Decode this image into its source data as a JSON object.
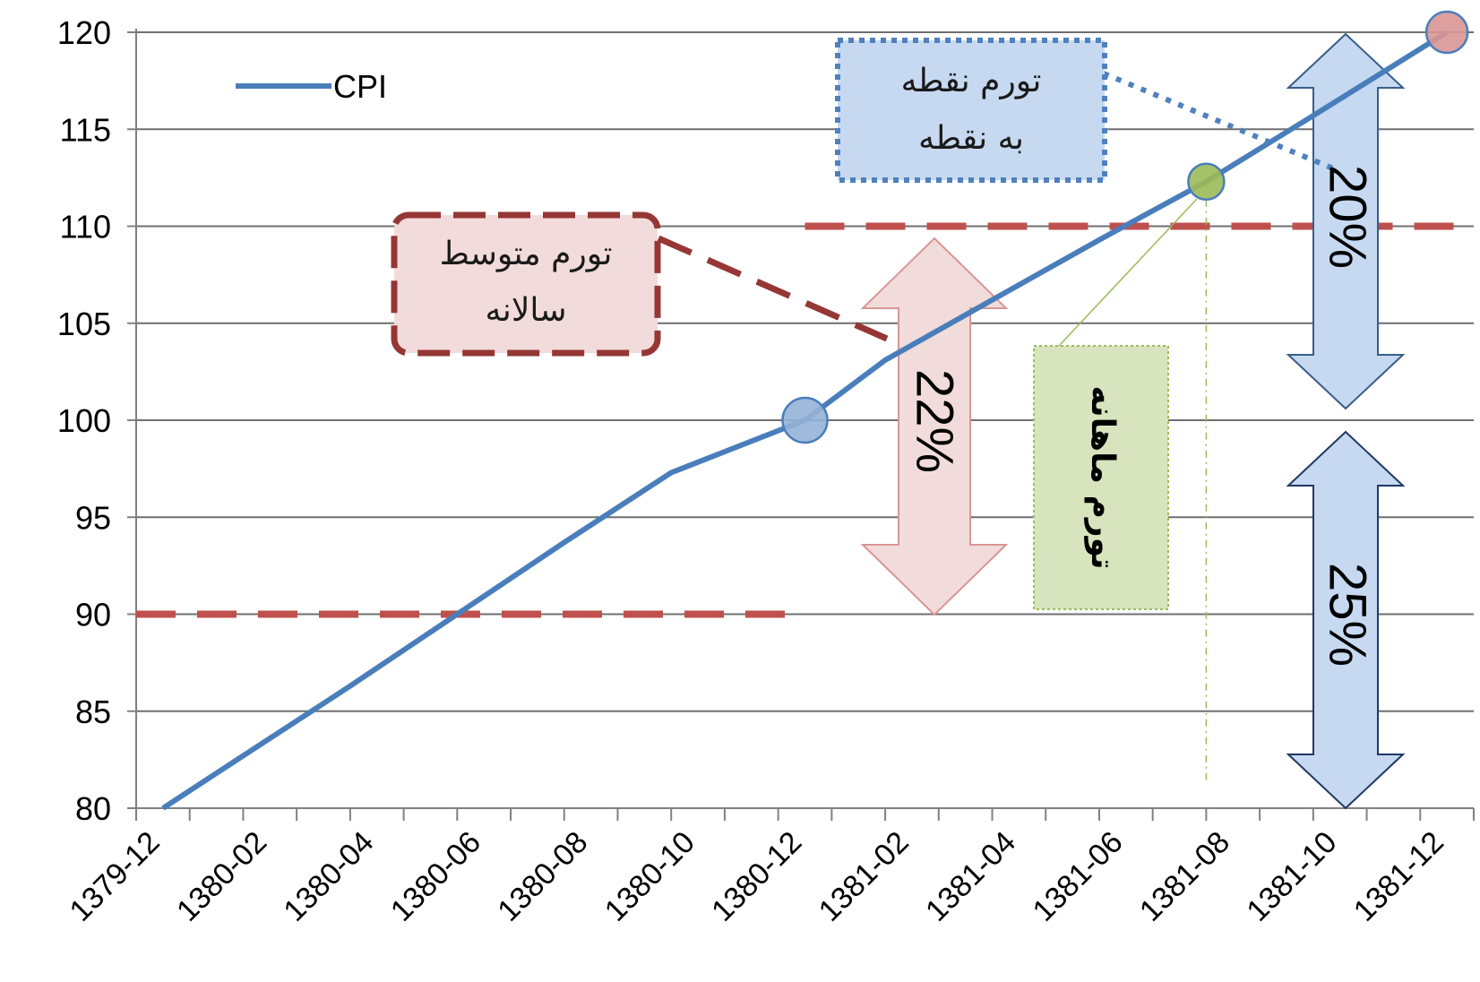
{
  "chart_data": {
    "type": "line",
    "x_tick_labels": [
      "1379-12",
      "1380-02",
      "1380-04",
      "1380-06",
      "1380-08",
      "1380-10",
      "1380-12",
      "1381-02",
      "1381-04",
      "1381-06",
      "1381-08",
      "1381-10",
      "1381-12"
    ],
    "yticks": [
      80,
      85,
      90,
      95,
      100,
      105,
      110,
      115,
      120
    ],
    "ylim": [
      80,
      120
    ],
    "grid": true,
    "legend_position": "top-left",
    "series": [
      {
        "name": "CPI",
        "color": "#4a7ebb",
        "x": [
          0.5,
          2,
          4,
          6,
          8,
          10,
          12.5,
          14,
          16,
          18,
          20,
          22,
          24.5
        ],
        "y": [
          80,
          82.7,
          86.3,
          90,
          93.7,
          97.3,
          100,
          103.1,
          106.2,
          109.3,
          112.3,
          115.7,
          120
        ]
      }
    ],
    "highlighted_points": [
      {
        "x": 12.5,
        "y": 100,
        "color": "#95b3d7"
      },
      {
        "x": 20,
        "y": 112.3,
        "color": "#9bbb59"
      },
      {
        "x": 24.5,
        "y": 120,
        "color": "#d99694"
      }
    ],
    "reference_lines": [
      {
        "y": 90,
        "x_from": 0,
        "x_to": 12.5,
        "color": "#c0504d"
      },
      {
        "y": 110,
        "x_from": 12.5,
        "x_to": 25,
        "color": "#c0504d"
      }
    ],
    "annotations": {
      "annual_avg": {
        "text_line1": "تورم متوسط",
        "text_line2": "سالانه",
        "fill": "#f2dcdb",
        "border": "#953735"
      },
      "point_to_point": {
        "text_line1": "تورم نقطه",
        "text_line2": "به نقطه",
        "fill": "#c6d9f1",
        "border": "#4f81bd"
      },
      "monthly": {
        "text": "تورم ماهانه",
        "fill": "#d7e4bd",
        "border": "#9bbb59"
      },
      "pct_22": "22%",
      "pct_20": "20%",
      "pct_25": "25%"
    }
  }
}
